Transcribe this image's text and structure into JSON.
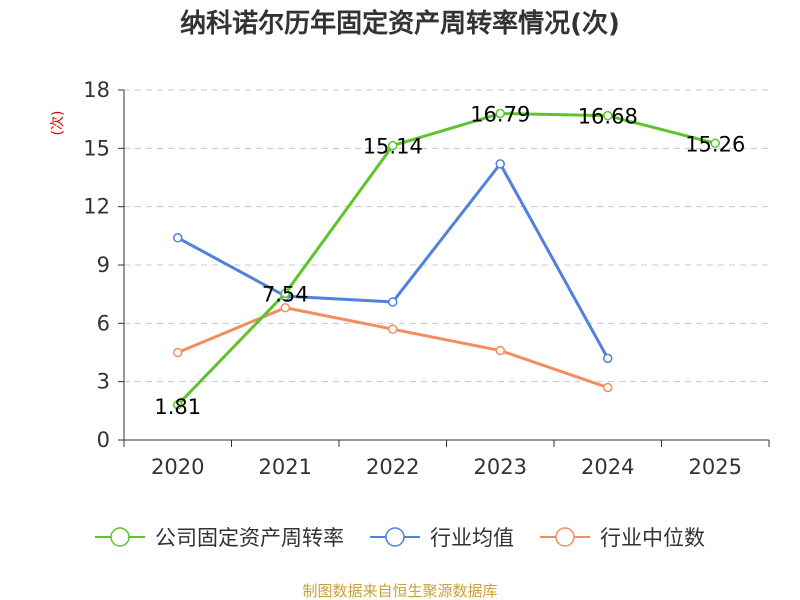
{
  "chart_data": {
    "type": "line",
    "title": "纳科诺尔历年固定资产周转率情况(次)",
    "ylabel": "(次)",
    "xlabel": "",
    "categories": [
      "2020",
      "2021",
      "2022",
      "2023",
      "2024",
      "2025"
    ],
    "ylim": [
      0,
      18
    ],
    "yticks": [
      0,
      3,
      6,
      9,
      12,
      15,
      18
    ],
    "grid": true,
    "legend_position": "bottom",
    "series": [
      {
        "name": "公司固定资产周转率",
        "color": "#5cc52e",
        "values": [
          1.81,
          7.54,
          15.14,
          16.79,
          16.68,
          15.26
        ],
        "labels": [
          "1.81",
          "7.54",
          "15.14",
          "16.79",
          "16.68",
          "15.26"
        ]
      },
      {
        "name": "行业均值",
        "color": "#4f81dd",
        "values": [
          10.4,
          7.4,
          7.1,
          14.2,
          4.2,
          null
        ]
      },
      {
        "name": "行业中位数",
        "color": "#f28e5c",
        "values": [
          4.5,
          6.8,
          5.7,
          4.6,
          2.7,
          null
        ]
      }
    ],
    "source": "制图数据来自恒生聚源数据库"
  }
}
